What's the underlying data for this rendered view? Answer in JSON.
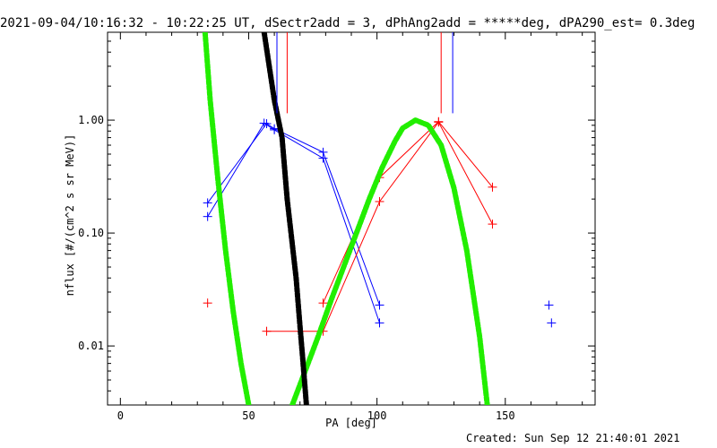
{
  "header": {
    "title": "2021-09-04/10:16:32 - 10:22:25 UT, dSectr2add = 3, dPhAng2add = *****deg, dPA290_est=  0.3deg"
  },
  "footer": {
    "created": "Created: Sun Sep 12 21:40:01 2021"
  },
  "chart_data": {
    "type": "line",
    "title": "2021-09-04/10:16:32 - 10:22:25 UT, dSectr2add = 3, dPhAng2add = *****deg, dPA290_est=  0.3deg",
    "xlabel": "PA [deg]",
    "ylabel": "nflux [#/(cm^2 s sr MeV)]",
    "xlim": [
      -5,
      185
    ],
    "ylim": [
      0.003,
      6
    ],
    "yscale": "log",
    "xticks": [
      0,
      50,
      100,
      150
    ],
    "xticklabels": [
      "0",
      "50",
      "100",
      "150"
    ],
    "yticks": [
      0.01,
      0.1,
      1.0
    ],
    "yticklabels": [
      "0.01",
      "0.10",
      "1.00"
    ],
    "grid": false,
    "colors": {
      "blue": "#0000ff",
      "red": "#ff0000",
      "green": "#22ee00",
      "black": "#000000"
    },
    "series": [
      {
        "color": "#0000ff",
        "style": "line-plus",
        "x": [
          34,
          57,
          60,
          79,
          101
        ],
        "y": [
          0.185,
          0.93,
          0.84,
          0.52,
          0.023
        ]
      },
      {
        "color": "#0000ff",
        "style": "line-plus",
        "x": [
          34,
          56,
          60,
          79,
          101
        ],
        "y": [
          0.14,
          0.94,
          0.82,
          0.46,
          0.016
        ]
      },
      {
        "color": "#0000ff",
        "style": "plus",
        "x": [
          167,
          168
        ],
        "y": [
          0.023,
          0.016
        ]
      },
      {
        "color": "#ff0000",
        "style": "line-plus",
        "x": [
          79,
          101,
          124,
          145
        ],
        "y": [
          0.024,
          0.31,
          0.97,
          0.255
        ]
      },
      {
        "color": "#ff0000",
        "style": "line-plus",
        "x": [
          57,
          79,
          101,
          124,
          145
        ],
        "y": [
          0.0135,
          0.0135,
          0.19,
          0.96,
          0.12
        ]
      },
      {
        "color": "#ff0000",
        "style": "plus",
        "x": [
          34
        ],
        "y": [
          0.024
        ]
      },
      {
        "color": "#22ee00",
        "style": "dashed-thick",
        "x": [
          33,
          35,
          38,
          41,
          44,
          47,
          50
        ],
        "y": [
          6.0,
          1.5,
          0.3,
          0.07,
          0.02,
          0.007,
          0.003
        ]
      },
      {
        "color": "#22ee00",
        "style": "dashed-thick",
        "x": [
          67,
          72,
          77,
          82,
          87,
          92,
          97,
          102,
          107,
          110,
          115,
          120,
          125,
          130,
          135,
          140,
          143
        ],
        "y": [
          0.003,
          0.006,
          0.012,
          0.025,
          0.05,
          0.1,
          0.2,
          0.38,
          0.65,
          0.85,
          1.0,
          0.9,
          0.6,
          0.25,
          0.07,
          0.012,
          0.003
        ]
      },
      {
        "color": "#000000",
        "style": "dashed-thick",
        "x": [
          56,
          60,
          63,
          65,
          67,
          68.5,
          70,
          71,
          72.5
        ],
        "y": [
          6.0,
          1.5,
          0.7,
          0.2,
          0.08,
          0.04,
          0.015,
          0.008,
          0.003
        ]
      },
      {
        "color": "#0000ff",
        "style": "vline",
        "x": [
          61,
          61
        ],
        "y": [
          1.15,
          6.0
        ]
      },
      {
        "color": "#0000ff",
        "style": "vline",
        "x": [
          129.5,
          129.5
        ],
        "y": [
          1.15,
          6.0
        ]
      },
      {
        "color": "#ff0000",
        "style": "vline",
        "x": [
          65,
          65
        ],
        "y": [
          1.15,
          6.0
        ]
      },
      {
        "color": "#ff0000",
        "style": "vline",
        "x": [
          125,
          125
        ],
        "y": [
          1.15,
          6.0
        ]
      }
    ]
  }
}
